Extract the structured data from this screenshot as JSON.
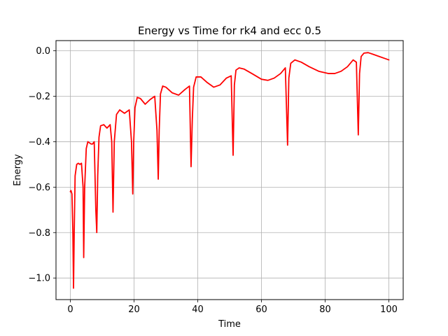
{
  "chart_data": {
    "type": "line",
    "title": "Energy vs Time for rk4 and ecc 0.5",
    "xlabel": "Time",
    "ylabel": "Energy",
    "xlim": [
      -4.5,
      104.5
    ],
    "ylim": [
      -1.095,
      0.045
    ],
    "grid": true,
    "x_ticks": [
      0,
      20,
      40,
      60,
      80,
      100
    ],
    "x_tick_labels": [
      "0",
      "20",
      "40",
      "60",
      "80",
      "100"
    ],
    "y_ticks": [
      0.0,
      -0.2,
      -0.4,
      -0.6,
      -0.8,
      -1.0
    ],
    "y_tick_labels": [
      "0.0",
      "−0.2",
      "−0.4",
      "−0.6",
      "−0.8",
      "−1.0"
    ],
    "series": [
      {
        "color": "#ff0000",
        "x": [
          0,
          0.2,
          0.5,
          0.8,
          1.0,
          1.2,
          1.5,
          2.0,
          2.5,
          3.0,
          3.5,
          4.0,
          4.2,
          4.5,
          5.0,
          5.5,
          6.0,
          6.5,
          7.0,
          7.5,
          8.0,
          8.3,
          8.6,
          9.0,
          9.5,
          10.5,
          11.5,
          12.5,
          13.0,
          13.4,
          13.8,
          14.5,
          15.5,
          17.0,
          18.5,
          19.2,
          19.6,
          19.9,
          20.3,
          21.0,
          22.0,
          23.5,
          25.0,
          26.5,
          27.2,
          27.6,
          27.9,
          28.3,
          29.0,
          30.0,
          32.0,
          34.0,
          36.0,
          37.4,
          37.9,
          38.3,
          38.7,
          39.5,
          41.0,
          43.0,
          45.0,
          47.0,
          49.0,
          50.5,
          51.1,
          51.5,
          52.0,
          53.0,
          54.5,
          57.0,
          60.0,
          62.0,
          64.0,
          66.0,
          67.5,
          68.2,
          68.6,
          69.2,
          70.5,
          72.5,
          75.0,
          78.0,
          81.0,
          83.0,
          85.0,
          87.0,
          88.8,
          89.8,
          90.4,
          90.8,
          91.3,
          92.2,
          93.5,
          95.0,
          97.0,
          99.0,
          100.0
        ],
        "y": [
          -0.62,
          -0.615,
          -0.63,
          -0.8,
          -1.045,
          -0.82,
          -0.55,
          -0.5,
          -0.495,
          -0.5,
          -0.495,
          -0.6,
          -0.91,
          -0.6,
          -0.43,
          -0.4,
          -0.405,
          -0.41,
          -0.41,
          -0.4,
          -0.7,
          -0.8,
          -0.55,
          -0.38,
          -0.33,
          -0.325,
          -0.34,
          -0.325,
          -0.4,
          -0.71,
          -0.4,
          -0.28,
          -0.26,
          -0.275,
          -0.26,
          -0.4,
          -0.63,
          -0.4,
          -0.25,
          -0.205,
          -0.21,
          -0.235,
          -0.215,
          -0.2,
          -0.35,
          -0.565,
          -0.35,
          -0.19,
          -0.155,
          -0.16,
          -0.185,
          -0.195,
          -0.17,
          -0.155,
          -0.51,
          -0.3,
          -0.16,
          -0.115,
          -0.115,
          -0.14,
          -0.16,
          -0.15,
          -0.12,
          -0.11,
          -0.46,
          -0.15,
          -0.085,
          -0.075,
          -0.08,
          -0.1,
          -0.125,
          -0.13,
          -0.12,
          -0.1,
          -0.075,
          -0.415,
          -0.12,
          -0.055,
          -0.04,
          -0.05,
          -0.07,
          -0.09,
          -0.1,
          -0.1,
          -0.09,
          -0.07,
          -0.04,
          -0.05,
          -0.37,
          -0.1,
          -0.025,
          -0.01,
          -0.008,
          -0.015,
          -0.025,
          -0.035,
          -0.04
        ]
      }
    ]
  }
}
